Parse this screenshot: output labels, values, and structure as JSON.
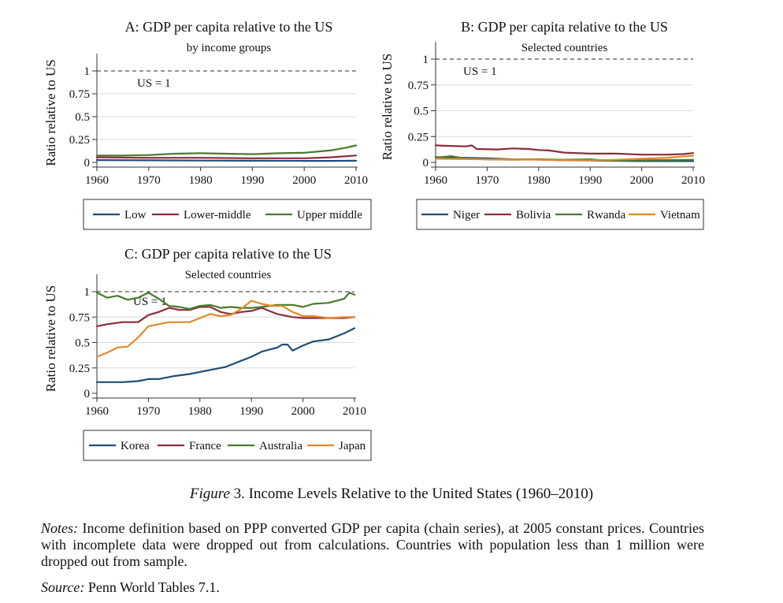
{
  "chart_data": [
    {
      "panel": "A",
      "type": "line",
      "title": "A: GDP per capita relative to the US",
      "subtitle": "by income groups",
      "ylabel": "Ratio relative to US",
      "xlabel": "",
      "xlim": [
        1960,
        2010
      ],
      "ylim": [
        0,
        1
      ],
      "xticks": [
        "1960",
        "1970",
        "1980",
        "1990",
        "2000",
        "2010"
      ],
      "yticks": [
        "0",
        "0.25",
        "0.5",
        "0.75",
        "1"
      ],
      "reference_label": "US = 1",
      "grid": true,
      "legend": "bottom",
      "series": [
        {
          "name": "Low",
          "color": "#1f4e79",
          "x": [
            1960,
            1970,
            1980,
            1990,
            2000,
            2005,
            2010
          ],
          "y": [
            0.025,
            0.022,
            0.02,
            0.018,
            0.016,
            0.016,
            0.018
          ]
        },
        {
          "name": "Lower-middle",
          "color": "#8b2c3c",
          "x": [
            1960,
            1970,
            1980,
            1990,
            2000,
            2005,
            2010
          ],
          "y": [
            0.055,
            0.05,
            0.05,
            0.045,
            0.045,
            0.055,
            0.075
          ]
        },
        {
          "name": "Upper middle",
          "color": "#4a7a2c",
          "x": [
            1960,
            1965,
            1970,
            1975,
            1980,
            1985,
            1990,
            1995,
            2000,
            2005,
            2008,
            2010
          ],
          "y": [
            0.075,
            0.075,
            0.08,
            0.095,
            0.1,
            0.095,
            0.09,
            0.1,
            0.105,
            0.13,
            0.16,
            0.185
          ]
        }
      ]
    },
    {
      "panel": "B",
      "type": "line",
      "title": "B: GDP per capita relative to the US",
      "subtitle": "Selected countries",
      "ylabel": "Ratio relative to US",
      "xlabel": "",
      "xlim": [
        1960,
        2010
      ],
      "ylim": [
        0,
        1
      ],
      "xticks": [
        "1960",
        "1970",
        "1980",
        "1990",
        "2000",
        "2010"
      ],
      "yticks": [
        "0",
        "0.25",
        "0.5",
        "0.75",
        "1"
      ],
      "reference_label": "US = 1",
      "grid": true,
      "legend": "bottom",
      "series": [
        {
          "name": "Niger",
          "color": "#1f4e79",
          "x": [
            1960,
            1965,
            1970,
            1975,
            1980,
            1985,
            1990,
            1995,
            2000,
            2005,
            2010
          ],
          "y": [
            0.05,
            0.045,
            0.04,
            0.03,
            0.028,
            0.02,
            0.018,
            0.015,
            0.012,
            0.012,
            0.012
          ]
        },
        {
          "name": "Bolivia",
          "color": "#8b2c3c",
          "x": [
            1960,
            1962,
            1966,
            1967,
            1968,
            1972,
            1975,
            1978,
            1980,
            1982,
            1985,
            1990,
            1995,
            2000,
            2005,
            2008,
            2010
          ],
          "y": [
            0.165,
            0.16,
            0.155,
            0.165,
            0.13,
            0.125,
            0.135,
            0.13,
            0.12,
            0.115,
            0.095,
            0.085,
            0.085,
            0.075,
            0.075,
            0.08,
            0.09
          ]
        },
        {
          "name": "Rwanda",
          "color": "#4a7a2c",
          "x": [
            1960,
            1963,
            1966,
            1970,
            1975,
            1980,
            1985,
            1990,
            1994,
            1995,
            2000,
            2005,
            2010
          ],
          "y": [
            0.045,
            0.06,
            0.035,
            0.03,
            0.025,
            0.03,
            0.025,
            0.03,
            0.015,
            0.02,
            0.02,
            0.022,
            0.025
          ]
        },
        {
          "name": "Vietnam",
          "color": "#e08a2c",
          "x": [
            1960,
            1970,
            1980,
            1985,
            1990,
            1995,
            2000,
            2005,
            2010
          ],
          "y": [
            0.035,
            0.03,
            0.025,
            0.02,
            0.02,
            0.025,
            0.035,
            0.045,
            0.065
          ]
        }
      ]
    },
    {
      "panel": "C",
      "type": "line",
      "title": "C: GDP per capita relative to the US",
      "subtitle": "Selected countries",
      "ylabel": "Ratio relative to US",
      "xlabel": "",
      "xlim": [
        1960,
        2010
      ],
      "ylim": [
        0,
        1
      ],
      "xticks": [
        "1960",
        "1970",
        "1980",
        "1990",
        "2000",
        "2010"
      ],
      "yticks": [
        "0",
        "0.25",
        "0.5",
        "0.75",
        "1"
      ],
      "reference_label": "US = 1",
      "grid": true,
      "legend": "bottom",
      "series": [
        {
          "name": "Korea",
          "color": "#1f4e79",
          "x": [
            1960,
            1965,
            1968,
            1970,
            1972,
            1975,
            1978,
            1980,
            1982,
            1985,
            1988,
            1990,
            1992,
            1995,
            1996,
            1997,
            1998,
            2000,
            2002,
            2005,
            2008,
            2010
          ],
          "y": [
            0.11,
            0.11,
            0.12,
            0.14,
            0.14,
            0.17,
            0.19,
            0.21,
            0.23,
            0.26,
            0.32,
            0.36,
            0.41,
            0.45,
            0.48,
            0.48,
            0.42,
            0.47,
            0.51,
            0.53,
            0.59,
            0.64
          ]
        },
        {
          "name": "France",
          "color": "#8b2c3c",
          "x": [
            1960,
            1962,
            1965,
            1968,
            1970,
            1972,
            1974,
            1976,
            1978,
            1980,
            1982,
            1984,
            1986,
            1988,
            1990,
            1992,
            1995,
            1998,
            2000,
            2005,
            2008,
            2010
          ],
          "y": [
            0.66,
            0.68,
            0.7,
            0.7,
            0.77,
            0.8,
            0.84,
            0.82,
            0.82,
            0.85,
            0.85,
            0.8,
            0.78,
            0.8,
            0.81,
            0.84,
            0.78,
            0.75,
            0.74,
            0.74,
            0.74,
            0.75
          ]
        },
        {
          "name": "Australia",
          "color": "#4a7a2c",
          "x": [
            1960,
            1962,
            1964,
            1966,
            1968,
            1970,
            1972,
            1974,
            1976,
            1978,
            1980,
            1982,
            1984,
            1986,
            1988,
            1990,
            1992,
            1995,
            1998,
            2000,
            2002,
            2005,
            2008,
            2009,
            2010
          ],
          "y": [
            0.99,
            0.94,
            0.96,
            0.92,
            0.94,
            0.99,
            0.93,
            0.86,
            0.85,
            0.83,
            0.86,
            0.87,
            0.84,
            0.85,
            0.84,
            0.84,
            0.85,
            0.87,
            0.87,
            0.85,
            0.88,
            0.89,
            0.93,
            0.99,
            0.97
          ]
        },
        {
          "name": "Japan",
          "color": "#e08a2c",
          "x": [
            1960,
            1962,
            1964,
            1966,
            1968,
            1970,
            1972,
            1974,
            1976,
            1978,
            1980,
            1982,
            1984,
            1986,
            1988,
            1990,
            1992,
            1994,
            1996,
            1998,
            2000,
            2002,
            2005,
            2008,
            2010
          ],
          "y": [
            0.36,
            0.4,
            0.45,
            0.46,
            0.55,
            0.66,
            0.68,
            0.7,
            0.7,
            0.7,
            0.74,
            0.78,
            0.76,
            0.77,
            0.83,
            0.91,
            0.88,
            0.86,
            0.86,
            0.8,
            0.76,
            0.76,
            0.74,
            0.75,
            0.75
          ]
        }
      ]
    }
  ],
  "figure": {
    "label": "Figure",
    "caption": "3. Income Levels Relative to the United States (1960–2010)"
  },
  "notes": {
    "label": "Notes:",
    "text": "Income definition based on PPP converted GDP per capita (chain series), at 2005 constant prices. Countries with incomplete data were dropped out from calculations. Countries with population less than 1 million were dropped out from sample."
  },
  "source": {
    "label": "Source:",
    "text": "Penn World Tables 7.1."
  }
}
